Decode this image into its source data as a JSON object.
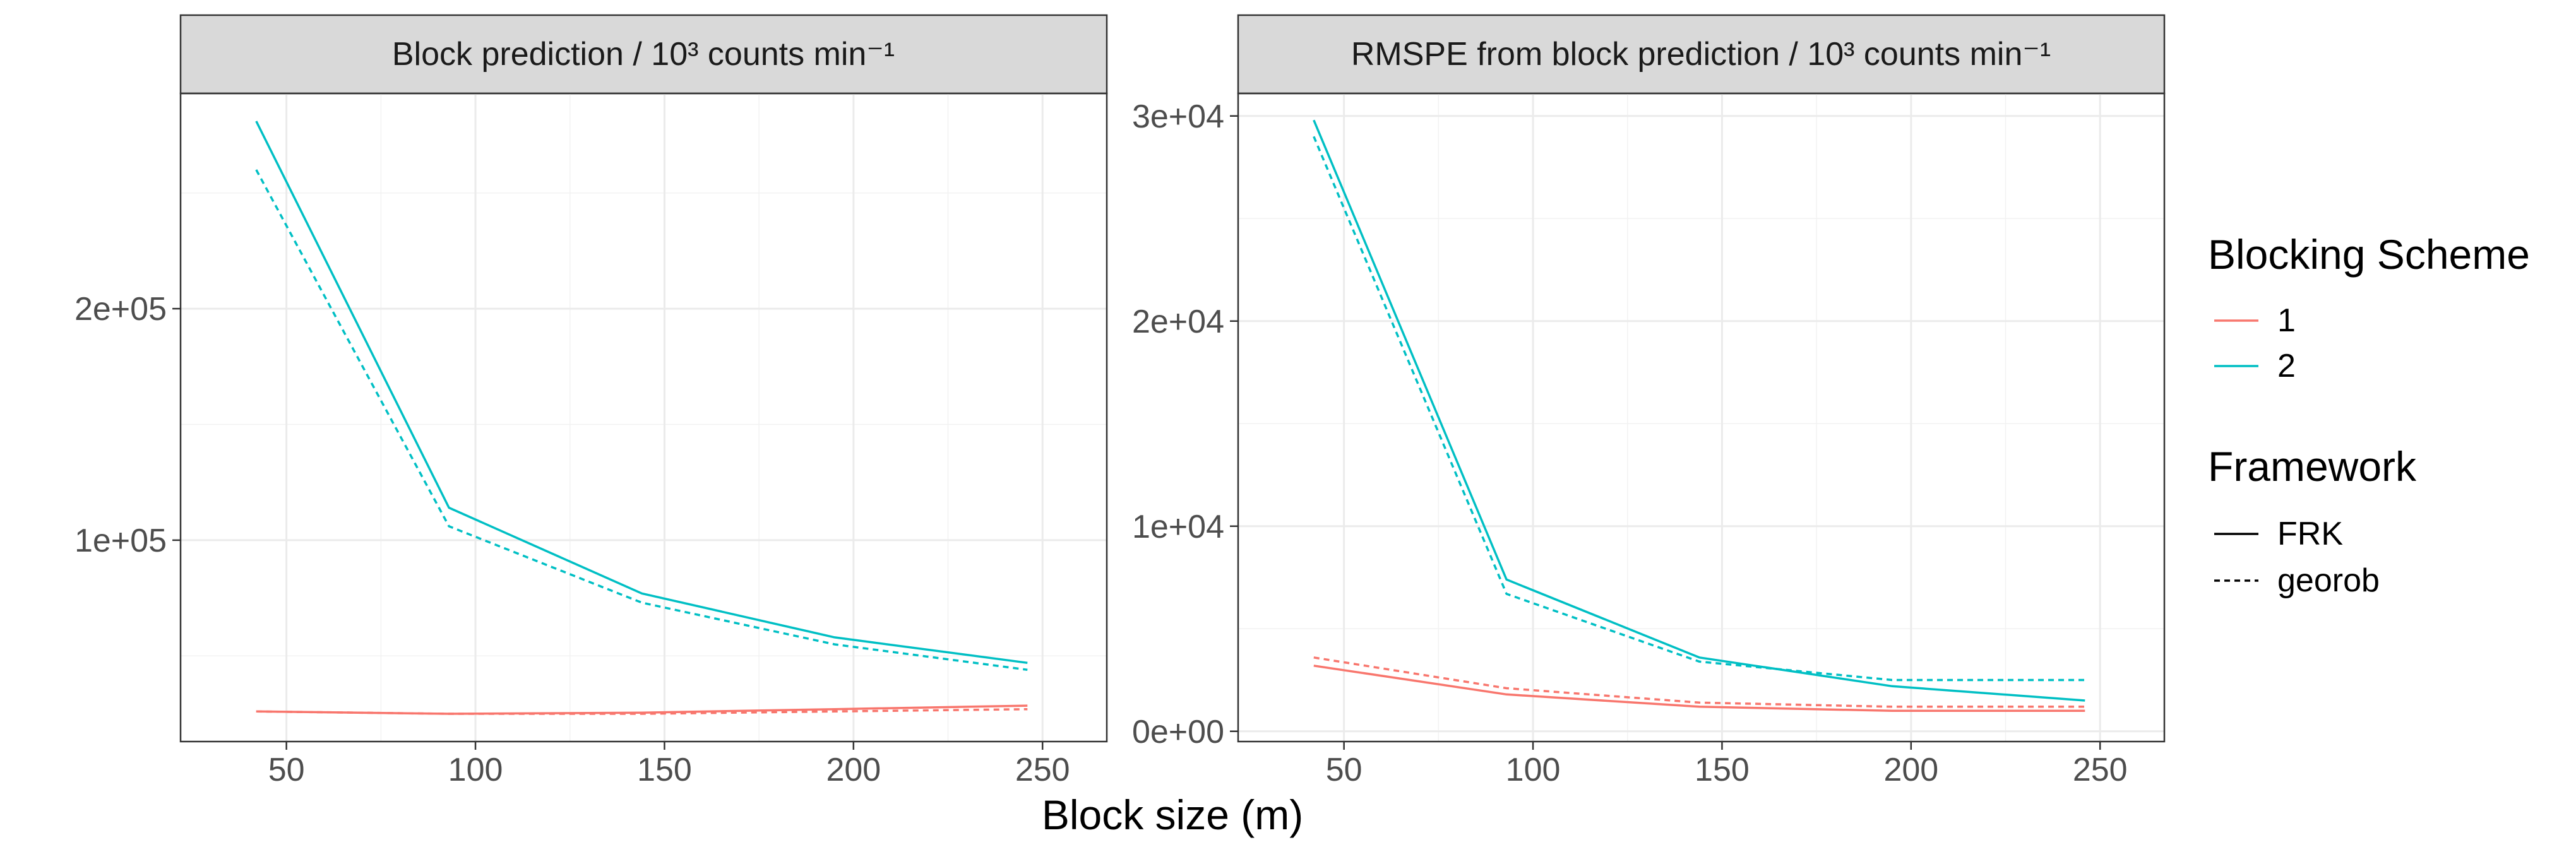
{
  "chart_data": [
    {
      "type": "line",
      "title": "Block prediction / 10³ counts min⁻¹",
      "x": [
        42,
        93,
        144,
        195,
        246
      ],
      "xticks": [
        50,
        100,
        150,
        200,
        250
      ],
      "xlim": [
        22,
        267
      ],
      "ylim": [
        13000,
        293000
      ],
      "yticks": [
        100000,
        200000
      ],
      "ytick_labels": [
        "1e+05",
        "2e+05"
      ],
      "series": [
        {
          "name": "1",
          "framework": "FRK",
          "color": "#F8766D",
          "values": [
            26000,
            25000,
            25500,
            27000,
            28500
          ]
        },
        {
          "name": "1",
          "framework": "georob",
          "color": "#F8766D",
          "values": [
            26000,
            25000,
            25000,
            26000,
            27000
          ]
        },
        {
          "name": "2",
          "framework": "FRK",
          "color": "#00BFC4",
          "values": [
            281000,
            114000,
            77000,
            58000,
            47000
          ]
        },
        {
          "name": "2",
          "framework": "georob",
          "color": "#00BFC4",
          "values": [
            260000,
            106000,
            73000,
            55000,
            44000
          ]
        }
      ]
    },
    {
      "type": "line",
      "title": "RMSPE from block prediction / 10³ counts min⁻¹",
      "x": [
        42,
        93,
        144,
        195,
        246
      ],
      "xticks": [
        50,
        100,
        150,
        200,
        250
      ],
      "xlim": [
        22,
        267
      ],
      "ylim": [
        -500,
        31100
      ],
      "yticks": [
        0,
        10000,
        20000,
        30000
      ],
      "ytick_labels": [
        "0e+00",
        "1e+04",
        "2e+04",
        "3e+04"
      ],
      "series": [
        {
          "name": "1",
          "framework": "FRK",
          "color": "#F8766D",
          "values": [
            3200,
            1800,
            1200,
            1000,
            1000
          ]
        },
        {
          "name": "1",
          "framework": "georob",
          "color": "#F8766D",
          "values": [
            3600,
            2100,
            1400,
            1200,
            1200
          ]
        },
        {
          "name": "2",
          "framework": "FRK",
          "color": "#00BFC4",
          "values": [
            29800,
            7400,
            3600,
            2200,
            1500
          ]
        },
        {
          "name": "2",
          "framework": "georob",
          "color": "#00BFC4",
          "values": [
            29000,
            6700,
            3400,
            2500,
            2500
          ]
        }
      ]
    }
  ],
  "xlabel": "Block size (m)",
  "legend": {
    "placement": "right",
    "scheme_title": "Blocking Scheme",
    "scheme_items": [
      {
        "label": "1",
        "color": "#F8766D"
      },
      {
        "label": "2",
        "color": "#00BFC4"
      }
    ],
    "framework_title": "Framework",
    "framework_items": [
      {
        "label": "FRK",
        "dash": "solid"
      },
      {
        "label": "georob",
        "dash": "dashed"
      }
    ]
  },
  "colors": {
    "strip_bg": "#D9D9D9",
    "grid": "#EBEBEB",
    "axis_text": "#4D4D4D",
    "text": "#1A1A1A"
  }
}
